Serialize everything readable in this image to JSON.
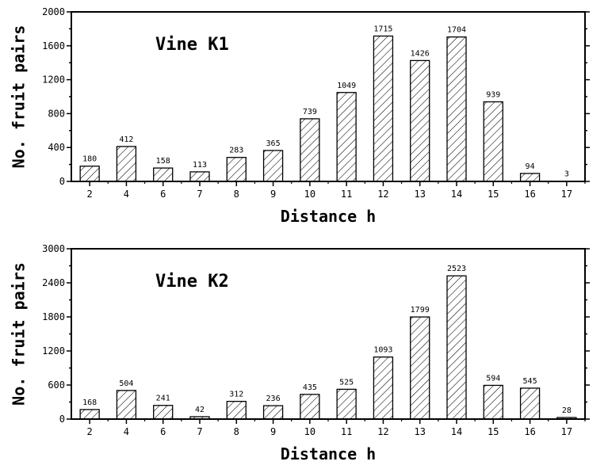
{
  "chart_data": [
    {
      "type": "bar",
      "title": "Vine K1",
      "xlabel": "Distance h",
      "ylabel": "No. fruit pairs",
      "ylim": [
        0,
        2000
      ],
      "yticks": [
        0,
        400,
        800,
        1200,
        1600,
        2000
      ],
      "categories": [
        "2",
        "4",
        "6",
        "7",
        "8",
        "9",
        "10",
        "11",
        "12",
        "13",
        "14",
        "15",
        "16",
        "17"
      ],
      "values": [
        180,
        412,
        158,
        113,
        283,
        365,
        739,
        1049,
        1715,
        1426,
        1704,
        939,
        94,
        3
      ],
      "grid": false,
      "pattern": "diagonal-hatch"
    },
    {
      "type": "bar",
      "title": "Vine K2",
      "xlabel": "Distance h",
      "ylabel": "No. fruit pairs",
      "ylim": [
        0,
        3000
      ],
      "yticks": [
        0,
        600,
        1200,
        1800,
        2400,
        3000
      ],
      "categories": [
        "2",
        "4",
        "6",
        "7",
        "8",
        "9",
        "10",
        "11",
        "12",
        "13",
        "14",
        "15",
        "16",
        "17"
      ],
      "values": [
        168,
        504,
        241,
        42,
        312,
        236,
        435,
        525,
        1093,
        1799,
        2523,
        594,
        545,
        28
      ],
      "grid": false,
      "pattern": "diagonal-hatch"
    }
  ]
}
